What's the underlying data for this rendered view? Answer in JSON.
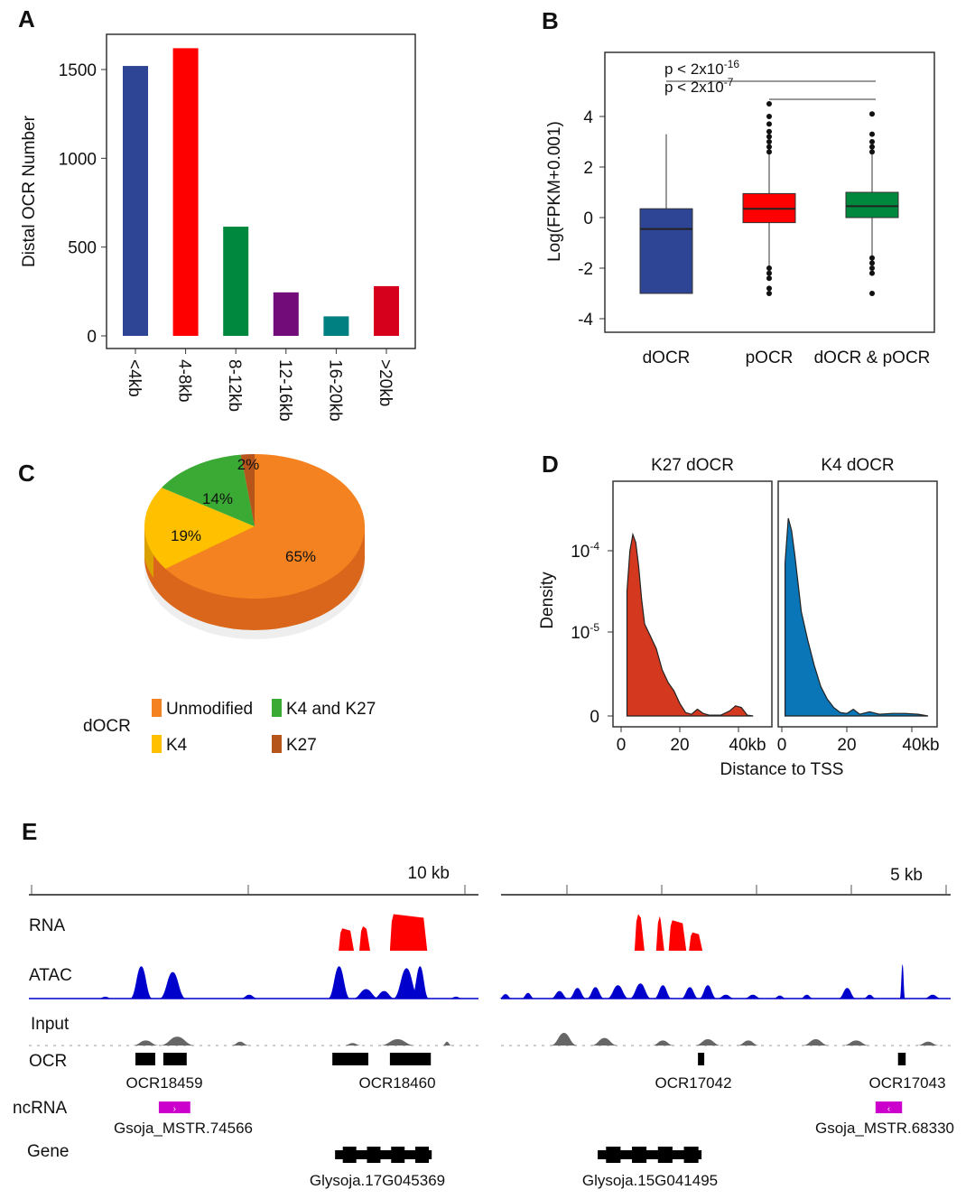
{
  "panel_labels": [
    "A",
    "B",
    "C",
    "D",
    "E"
  ],
  "chart_data": [
    {
      "type": "bar",
      "panel": "A",
      "title": "",
      "xlabel": "",
      "ylabel": "Distal OCR Number",
      "categories": [
        "<4kb",
        "4-8kb",
        "8-12kb",
        "12-16kb",
        "16-20kb",
        ">20kb"
      ],
      "values": [
        1520,
        1620,
        615,
        245,
        110,
        280
      ],
      "colors": [
        "#2e4494",
        "#ff0000",
        "#00883e",
        "#720c78",
        "#008080",
        "#d6001c"
      ],
      "yticks": [
        "0",
        "500",
        "1000",
        "1500"
      ],
      "ytick_values": [
        0,
        500,
        1000,
        1500
      ],
      "ylim": [
        0,
        1750
      ]
    },
    {
      "type": "box",
      "panel": "B",
      "ylabel": "Log(FPKM+0.001)",
      "categories": [
        "dOCR",
        "pOCR",
        "dOCR & pOCR"
      ],
      "colors": [
        "#2e4494",
        "#ff0000",
        "#00883e"
      ],
      "boxes": [
        {
          "q1": -3.0,
          "median": -0.45,
          "q3": 0.35,
          "whisker_low": -3.0,
          "whisker_high": 3.3,
          "outliers_high": [],
          "outliers_low": []
        },
        {
          "q1": -0.2,
          "median": 0.35,
          "q3": 0.95,
          "whisker_low": -1.9,
          "whisker_high": 2.5,
          "outliers_high": [
            2.6,
            2.8,
            3.0,
            3.2,
            3.4,
            3.7,
            4.0,
            4.5
          ],
          "outliers_low": [
            -2.0,
            -2.2,
            -2.4,
            -2.8,
            -3.0
          ]
        },
        {
          "q1": 0.0,
          "median": 0.45,
          "q3": 1.0,
          "whisker_low": -1.5,
          "whisker_high": 2.5,
          "outliers_high": [
            2.6,
            2.8,
            3.0,
            3.3,
            4.1
          ],
          "outliers_low": [
            -1.6,
            -1.8,
            -2.0,
            -2.2,
            -3.0
          ]
        }
      ],
      "yticks": [
        "-4",
        "-2",
        "0",
        "2",
        "4"
      ],
      "ytick_values": [
        -4,
        -2,
        0,
        2,
        4
      ],
      "ylim": [
        -4.4,
        6.3
      ],
      "annotations": [
        {
          "text": "p < 2x10",
          "sup": "-16",
          "from": 0,
          "to": 2
        },
        {
          "text": "p < 2x10",
          "sup": "-7",
          "from": 1,
          "to": 2
        }
      ]
    },
    {
      "type": "pie",
      "panel": "C",
      "group_label": "dOCR",
      "slices": [
        {
          "label": "Unmodified",
          "value": 65,
          "text": "65%",
          "color": "#f58220"
        },
        {
          "label": "K4",
          "value": 19,
          "text": "19%",
          "color": "#ffc000"
        },
        {
          "label": "K4 and K27",
          "value": 14,
          "text": "14%",
          "color": "#3aaa35"
        },
        {
          "label": "K27",
          "value": 2,
          "text": "2%",
          "color": "#b5541b"
        }
      ],
      "legend_order": [
        "Unmodified",
        "K4 and K27",
        "K4",
        "K27"
      ]
    },
    {
      "type": "area",
      "panel": "D",
      "ylabel": "Density",
      "xlabel": "Distance to TSS",
      "yticks": [
        "0",
        "10",
        "10"
      ],
      "ytick_sups": [
        "",
        "-5",
        "-4"
      ],
      "ytick_levels": [
        0,
        1,
        2
      ],
      "facets": [
        {
          "title": "K27 dOCR",
          "color": "#d4381f",
          "xticks": [
            "0",
            "20",
            "40kb"
          ],
          "xtick_values": [
            0,
            20,
            40
          ],
          "points": [
            [
              2,
              1.5
            ],
            [
              3,
              2.0
            ],
            [
              4,
              2.2
            ],
            [
              5,
              2.1
            ],
            [
              6,
              1.8
            ],
            [
              7,
              1.4
            ],
            [
              8,
              1.1
            ],
            [
              10,
              0.95
            ],
            [
              12,
              0.8
            ],
            [
              14,
              0.55
            ],
            [
              16,
              0.4
            ],
            [
              18,
              0.3
            ],
            [
              20,
              0.15
            ],
            [
              22,
              0.04
            ],
            [
              24,
              0.02
            ],
            [
              26,
              0.08
            ],
            [
              28,
              0.03
            ],
            [
              30,
              0.01
            ],
            [
              34,
              0.01
            ],
            [
              37,
              0.06
            ],
            [
              39,
              0.12
            ],
            [
              41,
              0.1
            ],
            [
              43,
              0.01
            ],
            [
              45,
              0.0
            ]
          ]
        },
        {
          "title": "K4 dOCR",
          "color": "#0a76b8",
          "xticks": [
            "0",
            "20",
            "40kb"
          ],
          "xtick_values": [
            0,
            20,
            40
          ],
          "points": [
            [
              1,
              1.85
            ],
            [
              2,
              2.4
            ],
            [
              3,
              2.25
            ],
            [
              4,
              1.95
            ],
            [
              5,
              1.6
            ],
            [
              6,
              1.25
            ],
            [
              8,
              0.9
            ],
            [
              10,
              0.6
            ],
            [
              12,
              0.35
            ],
            [
              14,
              0.2
            ],
            [
              16,
              0.1
            ],
            [
              18,
              0.04
            ],
            [
              20,
              0.03
            ],
            [
              22,
              0.08
            ],
            [
              24,
              0.02
            ],
            [
              27,
              0.05
            ],
            [
              30,
              0.02
            ],
            [
              34,
              0.03
            ],
            [
              38,
              0.03
            ],
            [
              42,
              0.02
            ],
            [
              45,
              0.0
            ]
          ]
        }
      ],
      "xlim": [
        0,
        46
      ],
      "ylim": [
        0,
        2.7
      ]
    },
    {
      "type": "genome_tracks",
      "panel": "E",
      "windows": [
        {
          "scale_label": "10 kb"
        },
        {
          "scale_label": "5 kb"
        }
      ],
      "track_labels": [
        "RNA",
        "ATAC",
        "Input",
        "OCR",
        "ncRNA",
        "Gene"
      ],
      "track_colors": {
        "RNA": "#ff0000",
        "ATAC": "#0000cc",
        "Input": "#666666",
        "OCR": "#000000",
        "ncRNA": "#cc00cc",
        "Gene": "#000000"
      },
      "rna": [
        [
          [
            6.89,
            7.23,
            0.55
          ],
          [
            7.35,
            7.59,
            0.6
          ],
          [
            8.03,
            8.86,
            0.9
          ]
        ],
        [
          [
            2.97,
            3.19,
            0.9
          ],
          [
            3.45,
            3.63,
            0.85
          ],
          [
            3.73,
            4.12,
            0.75
          ],
          [
            4.18,
            4.48,
            0.45
          ]
        ]
      ],
      "atac": [
        [
          [
            1.7,
            0.3,
            0.05
          ],
          [
            2.5,
            0.5,
            0.85
          ],
          [
            3.2,
            0.6,
            0.7
          ],
          [
            4.9,
            0.4,
            0.1
          ],
          [
            6.9,
            0.5,
            0.85
          ],
          [
            7.5,
            0.6,
            0.25
          ],
          [
            7.9,
            0.5,
            0.2
          ],
          [
            8.4,
            0.6,
            0.8
          ],
          [
            8.7,
            0.4,
            0.85
          ],
          [
            9.5,
            0.3,
            0.05
          ]
        ],
        [
          [
            0.1,
            0.3,
            0.12
          ],
          [
            0.6,
            0.3,
            0.15
          ],
          [
            1.3,
            0.4,
            0.2
          ],
          [
            1.7,
            0.4,
            0.28
          ],
          [
            2.1,
            0.4,
            0.3
          ],
          [
            2.6,
            0.5,
            0.35
          ],
          [
            3.1,
            0.5,
            0.4
          ],
          [
            3.6,
            0.4,
            0.35
          ],
          [
            4.2,
            0.4,
            0.3
          ],
          [
            4.6,
            0.4,
            0.35
          ],
          [
            5.0,
            0.4,
            0.1
          ],
          [
            5.6,
            0.4,
            0.1
          ],
          [
            6.2,
            0.3,
            0.08
          ],
          [
            6.8,
            0.3,
            0.1
          ],
          [
            7.7,
            0.4,
            0.28
          ],
          [
            8.2,
            0.3,
            0.1
          ],
          [
            8.93,
            0.12,
            0.9
          ],
          [
            9.6,
            0.4,
            0.1
          ]
        ]
      ],
      "input": [
        [
          [
            2.6,
            0.6,
            0.4
          ],
          [
            3.3,
            0.8,
            0.7
          ],
          [
            4.7,
            0.4,
            0.3
          ],
          [
            7.2,
            0.4,
            0.2
          ],
          [
            8.2,
            0.8,
            0.5
          ],
          [
            9.3,
            0.2,
            0.3
          ]
        ],
        [
          [
            1.4,
            0.6,
            1.0
          ],
          [
            2.3,
            0.6,
            0.6
          ],
          [
            3.6,
            0.5,
            0.4
          ],
          [
            4.6,
            0.6,
            0.5
          ],
          [
            5.5,
            0.5,
            0.4
          ],
          [
            7.0,
            0.6,
            0.5
          ],
          [
            7.9,
            0.6,
            0.4
          ],
          [
            9.5,
            0.5,
            0.3
          ]
        ]
      ],
      "ocr": [
        {
          "name": "OCR18459",
          "blocks": [
            [
              2.37,
              2.81
            ],
            [
              2.99,
              3.51
            ]
          ]
        },
        {
          "name": "OCR18460",
          "blocks": [
            [
              6.75,
              7.55
            ],
            [
              8.03,
              8.94
            ]
          ]
        },
        {
          "name": "OCR17042",
          "blocks": [
            [
              4.38,
              4.52
            ]
          ]
        },
        {
          "name": "OCR17043",
          "blocks": [
            [
              8.83,
              9.0
            ]
          ]
        }
      ],
      "ncrna": [
        {
          "name": "Gsoja_MSTR.74566",
          "window": 0,
          "start": 2.89,
          "end": 3.59,
          "strand": "+"
        },
        {
          "name": "Gsoja_MSTR.68330",
          "window": 1,
          "start": 8.33,
          "end": 8.92,
          "strand": "-"
        }
      ],
      "genes": [
        {
          "name": "Glysoja.17G045369",
          "window": 0,
          "start": 6.81,
          "end": 8.96,
          "strand": "+"
        },
        {
          "name": "Glysoja.15G041495",
          "window": 1,
          "start": 2.15,
          "end": 4.46,
          "strand": "-"
        }
      ]
    }
  ]
}
